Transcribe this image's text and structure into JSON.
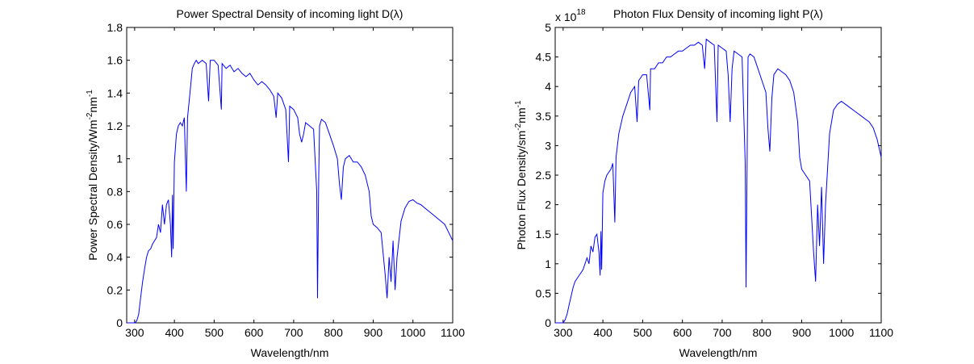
{
  "chart_data": [
    {
      "type": "line",
      "title": "Power Spectral Density of incoming light D(λ)",
      "xlabel": "Wavelength/nm",
      "ylabel_main": "Power Spectral Density/Wm",
      "ylabel_sup1": "-2",
      "ylabel_mid": "nm",
      "ylabel_sup2": "-1",
      "xlim": [
        280,
        1100
      ],
      "ylim": [
        0,
        1.8
      ],
      "xticks": [
        300,
        400,
        500,
        600,
        700,
        800,
        900,
        1000,
        1100
      ],
      "yticks": [
        0,
        0.2,
        0.4,
        0.6,
        0.8,
        1,
        1.2,
        1.4,
        1.6,
        1.8
      ],
      "ytick_labels": [
        "0",
        "0.2",
        "0.4",
        "0.6",
        "0.8",
        "1",
        "1.2",
        "1.4",
        "1.6",
        "1.8"
      ],
      "line_color": "#0000ff",
      "grid": false,
      "series": [
        {
          "x": [
            280,
            290,
            295,
            300,
            305,
            310,
            315,
            320,
            325,
            330,
            335,
            340,
            345,
            350,
            355,
            360,
            365,
            370,
            375,
            380,
            385,
            390,
            393,
            395,
            397,
            400,
            405,
            410,
            415,
            420,
            425,
            430,
            433,
            435,
            440,
            445,
            450,
            455,
            460,
            470,
            480,
            486,
            490,
            500,
            510,
            518,
            520,
            530,
            540,
            550,
            560,
            570,
            580,
            590,
            600,
            610,
            620,
            630,
            640,
            650,
            656,
            660,
            670,
            680,
            687,
            690,
            700,
            710,
            715,
            720,
            725,
            730,
            740,
            750,
            758,
            760,
            763,
            765,
            770,
            780,
            790,
            800,
            810,
            815,
            820,
            825,
            830,
            840,
            850,
            860,
            870,
            880,
            890,
            895,
            900,
            910,
            920,
            930,
            935,
            940,
            945,
            950,
            955,
            960,
            970,
            980,
            990,
            1000,
            1010,
            1020,
            1030,
            1040,
            1050,
            1060,
            1070,
            1080,
            1090,
            1100
          ],
          "y": [
            0,
            0,
            0,
            0,
            0.01,
            0.05,
            0.15,
            0.25,
            0.33,
            0.4,
            0.44,
            0.45,
            0.48,
            0.5,
            0.52,
            0.6,
            0.55,
            0.72,
            0.6,
            0.72,
            0.75,
            0.6,
            0.4,
            0.78,
            0.45,
            0.98,
            1.15,
            1.2,
            1.22,
            1.2,
            1.25,
            0.8,
            1.25,
            1.3,
            1.42,
            1.55,
            1.58,
            1.6,
            1.58,
            1.6,
            1.58,
            1.35,
            1.6,
            1.6,
            1.57,
            1.3,
            1.58,
            1.55,
            1.57,
            1.53,
            1.55,
            1.52,
            1.5,
            1.52,
            1.48,
            1.45,
            1.47,
            1.45,
            1.42,
            1.38,
            1.25,
            1.4,
            1.37,
            1.3,
            0.98,
            1.32,
            1.3,
            1.25,
            1.15,
            1.1,
            1.15,
            1.22,
            1.2,
            1.18,
            0.8,
            0.15,
            0.9,
            1.2,
            1.24,
            1.22,
            1.15,
            1.08,
            1,
            0.85,
            0.75,
            0.95,
            1,
            1.02,
            0.98,
            0.98,
            0.95,
            0.9,
            0.8,
            0.65,
            0.6,
            0.58,
            0.55,
            0.3,
            0.15,
            0.4,
            0.25,
            0.5,
            0.2,
            0.4,
            0.62,
            0.7,
            0.74,
            0.75,
            0.73,
            0.72,
            0.7,
            0.68,
            0.66,
            0.64,
            0.62,
            0.6,
            0.55,
            0.5
          ]
        }
      ]
    },
    {
      "type": "line",
      "title": "Photon Flux Density of incoming light P(λ)",
      "exponent_base": "x 10",
      "exponent_power": "18",
      "xlabel": "Wavelength/nm",
      "ylabel_main": "Photon Flux Density/sm",
      "ylabel_sup1": "-2",
      "ylabel_mid": "nm",
      "ylabel_sup2": "-1",
      "xlim": [
        280,
        1100
      ],
      "ylim": [
        0,
        5
      ],
      "xticks": [
        300,
        400,
        500,
        600,
        700,
        800,
        900,
        1000,
        1100
      ],
      "yticks": [
        0,
        0.5,
        1,
        1.5,
        2,
        2.5,
        3,
        3.5,
        4,
        4.5,
        5
      ],
      "ytick_labels": [
        "0",
        "0.5",
        "1",
        "1.5",
        "2",
        "2.5",
        "3",
        "3.5",
        "4",
        "4.5",
        "5"
      ],
      "line_color": "#0000ff",
      "grid": false,
      "series": [
        {
          "x": [
            280,
            290,
            295,
            300,
            305,
            310,
            315,
            320,
            325,
            330,
            335,
            340,
            350,
            360,
            365,
            370,
            375,
            380,
            385,
            390,
            393,
            395,
            397,
            400,
            405,
            410,
            420,
            425,
            430,
            433,
            440,
            450,
            460,
            470,
            480,
            486,
            490,
            500,
            510,
            518,
            520,
            530,
            540,
            550,
            560,
            570,
            580,
            590,
            600,
            610,
            620,
            630,
            640,
            650,
            656,
            660,
            670,
            680,
            687,
            690,
            700,
            710,
            715,
            720,
            725,
            730,
            740,
            750,
            758,
            760,
            763,
            765,
            770,
            780,
            790,
            800,
            810,
            815,
            820,
            825,
            830,
            840,
            850,
            860,
            870,
            880,
            890,
            895,
            900,
            910,
            920,
            930,
            935,
            940,
            945,
            950,
            955,
            960,
            970,
            980,
            990,
            1000,
            1010,
            1020,
            1030,
            1040,
            1050,
            1060,
            1070,
            1080,
            1090,
            1100
          ],
          "y": [
            0,
            0,
            0,
            0,
            0.05,
            0.15,
            0.3,
            0.45,
            0.6,
            0.7,
            0.75,
            0.8,
            0.9,
            1.1,
            1.0,
            1.3,
            1.2,
            1.45,
            1.5,
            1.2,
            0.8,
            1.55,
            0.9,
            2.2,
            2.4,
            2.5,
            2.6,
            2.7,
            1.7,
            2.8,
            3.2,
            3.5,
            3.7,
            3.9,
            4.0,
            3.4,
            4.1,
            4.2,
            4.2,
            3.6,
            4.3,
            4.3,
            4.4,
            4.4,
            4.5,
            4.5,
            4.55,
            4.6,
            4.6,
            4.65,
            4.7,
            4.7,
            4.75,
            4.7,
            4.3,
            4.8,
            4.75,
            4.7,
            3.4,
            4.7,
            4.65,
            4.6,
            4.2,
            3.4,
            4.3,
            4.6,
            4.55,
            4.5,
            2.7,
            0.6,
            3.0,
            4.5,
            4.55,
            4.5,
            4.3,
            4.1,
            3.9,
            3.3,
            2.9,
            3.8,
            4.2,
            4.3,
            4.25,
            4.2,
            4.1,
            3.9,
            3.4,
            2.8,
            2.6,
            2.5,
            2.4,
            1.2,
            0.7,
            2.0,
            1.3,
            2.3,
            1.0,
            2.0,
            3.2,
            3.6,
            3.7,
            3.75,
            3.7,
            3.65,
            3.6,
            3.55,
            3.5,
            3.45,
            3.4,
            3.3,
            3.1,
            2.8
          ]
        }
      ]
    }
  ]
}
